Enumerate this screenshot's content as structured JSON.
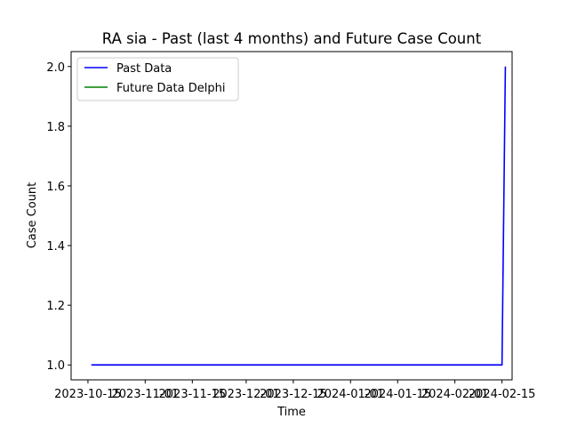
{
  "chart_data": {
    "type": "line",
    "title": "RA sia - Past (last 4 months) and Future Case Count",
    "xlabel": "Time",
    "ylabel": "Case Count",
    "x_ticks": [
      "2023-10-15",
      "2023-11-01",
      "2023-11-15",
      "2023-12-01",
      "2023-12-15",
      "2024-01-01",
      "2024-01-15",
      "2024-02-01",
      "2024-02-15"
    ],
    "y_ticks": [
      "1.0",
      "1.2",
      "1.4",
      "1.6",
      "1.8",
      "2.0"
    ],
    "ylim": [
      0.95,
      2.05
    ],
    "xlim": [
      "2023-10-10",
      "2024-02-18"
    ],
    "grid": false,
    "legend_position": "top-left",
    "series": [
      {
        "name": "Past Data",
        "color": "#0000ff",
        "x": [
          "2023-10-16",
          "2024-02-15",
          "2024-02-16"
        ],
        "y": [
          1,
          1,
          2
        ]
      },
      {
        "name": "Future Data Delphi",
        "color": "#008000",
        "x": [],
        "y": []
      }
    ]
  }
}
